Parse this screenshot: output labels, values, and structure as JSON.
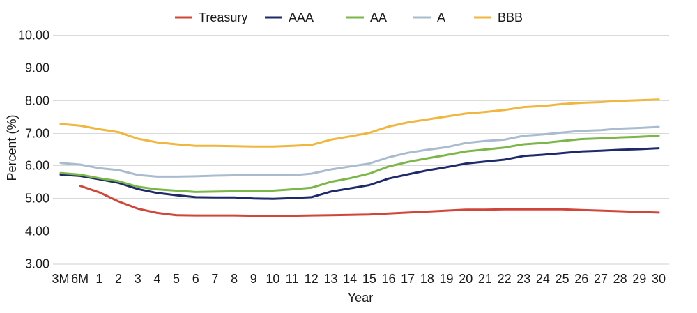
{
  "chart_data": {
    "type": "line",
    "title": "",
    "xlabel": "Year",
    "ylabel": "Percent (%)",
    "ylim": [
      3.0,
      10.0
    ],
    "yticks": [
      "3.00",
      "4.00",
      "5.00",
      "6.00",
      "7.00",
      "8.00",
      "9.00",
      "10.00"
    ],
    "grid": "horizontal",
    "legend_position": "top",
    "categories": [
      "3M",
      "6M",
      "1",
      "2",
      "3",
      "4",
      "5",
      "6",
      "7",
      "8",
      "9",
      "10",
      "11",
      "12",
      "13",
      "14",
      "15",
      "16",
      "17",
      "18",
      "19",
      "20",
      "21",
      "22",
      "23",
      "24",
      "25",
      "26",
      "27",
      "28",
      "29",
      "30"
    ],
    "series": [
      {
        "name": "Treasury",
        "color": "#d0473a",
        "values": [
          null,
          5.38,
          5.18,
          4.9,
          4.68,
          4.55,
          4.48,
          4.47,
          4.47,
          4.47,
          4.46,
          4.45,
          4.46,
          4.47,
          4.48,
          4.49,
          4.5,
          4.53,
          4.56,
          4.59,
          4.62,
          4.65,
          4.65,
          4.66,
          4.66,
          4.66,
          4.66,
          4.64,
          4.62,
          4.6,
          4.58,
          4.56
        ]
      },
      {
        "name": "AAA",
        "color": "#1f2a6b",
        "values": [
          5.72,
          5.68,
          5.58,
          5.47,
          5.28,
          5.16,
          5.09,
          5.03,
          5.02,
          5.02,
          4.99,
          4.98,
          5.0,
          5.03,
          5.2,
          5.3,
          5.4,
          5.6,
          5.73,
          5.85,
          5.95,
          6.06,
          6.12,
          6.18,
          6.29,
          6.33,
          6.38,
          6.43,
          6.45,
          6.48,
          6.5,
          6.53
        ]
      },
      {
        "name": "AA",
        "color": "#7ab648",
        "values": [
          5.77,
          5.72,
          5.61,
          5.52,
          5.35,
          5.27,
          5.23,
          5.19,
          5.2,
          5.21,
          5.21,
          5.23,
          5.27,
          5.32,
          5.5,
          5.61,
          5.75,
          5.97,
          6.11,
          6.22,
          6.32,
          6.43,
          6.49,
          6.55,
          6.65,
          6.69,
          6.75,
          6.81,
          6.83,
          6.86,
          6.88,
          6.91
        ]
      },
      {
        "name": "A",
        "color": "#a9bccf",
        "values": [
          6.08,
          6.03,
          5.92,
          5.86,
          5.71,
          5.66,
          5.66,
          5.67,
          5.69,
          5.7,
          5.71,
          5.7,
          5.7,
          5.75,
          5.88,
          5.97,
          6.06,
          6.25,
          6.39,
          6.48,
          6.56,
          6.69,
          6.75,
          6.79,
          6.91,
          6.95,
          7.01,
          7.06,
          7.08,
          7.13,
          7.15,
          7.18
        ]
      },
      {
        "name": "BBB",
        "color": "#f0b63d",
        "values": [
          7.27,
          7.22,
          7.11,
          7.02,
          6.82,
          6.71,
          6.65,
          6.6,
          6.6,
          6.59,
          6.58,
          6.58,
          6.6,
          6.63,
          6.79,
          6.89,
          7.0,
          7.19,
          7.32,
          7.41,
          7.5,
          7.59,
          7.64,
          7.7,
          7.79,
          7.82,
          7.88,
          7.92,
          7.94,
          7.98,
          8.0,
          8.02
        ]
      }
    ]
  }
}
